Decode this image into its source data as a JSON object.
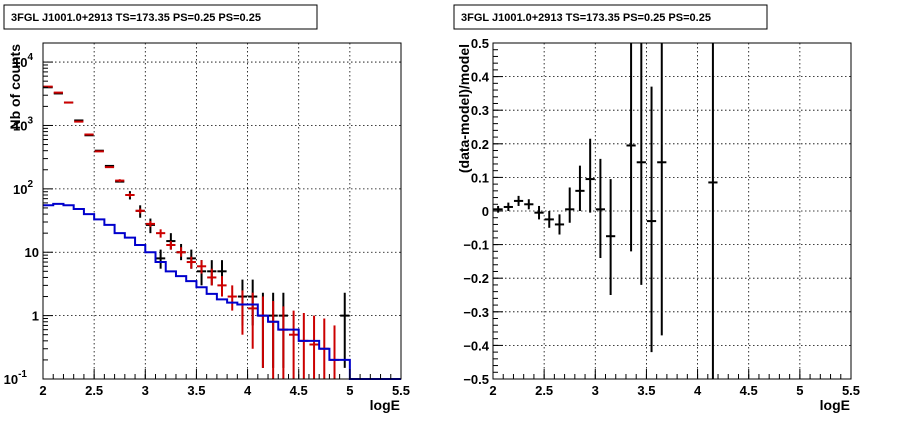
{
  "chart_data": [
    {
      "type": "line",
      "title": "3FGL J1001.0+2913 TS=173.35 PS=0.25 PS=0.25",
      "xlabel": "logE",
      "ylabel": "Nb of counts",
      "xlim": [
        2,
        5.5
      ],
      "ylim": [
        0.1,
        20000
      ],
      "yscale": "log",
      "grid": true,
      "x_ticks": [
        "2",
        "2.5",
        "3",
        "3.5",
        "4",
        "4.5",
        "5",
        "5.5"
      ],
      "y_ticks": [
        {
          "value": 0.1,
          "label": "10",
          "exp": "-1"
        },
        {
          "value": 1,
          "label": "1",
          "exp": ""
        },
        {
          "value": 10,
          "label": "10",
          "exp": ""
        },
        {
          "value": 100,
          "label": "10",
          "exp": "2"
        },
        {
          "value": 1000,
          "label": "10",
          "exp": "3"
        },
        {
          "value": 10000,
          "label": "10",
          "exp": "4"
        }
      ],
      "series": [
        {
          "kind": "points",
          "color": "#000000",
          "x": [
            2.05,
            2.15,
            2.25,
            2.35,
            2.45,
            2.55,
            2.65,
            2.75,
            2.85,
            2.95,
            3.05,
            3.15,
            3.25,
            3.35,
            3.45,
            3.55,
            3.65,
            3.75,
            3.85,
            3.95,
            4.05,
            4.15,
            4.25,
            4.35,
            4.45,
            4.55,
            4.65,
            4.75,
            4.85,
            4.95
          ],
          "y": [
            4000,
            3200,
            2300,
            1200,
            700,
            400,
            230,
            130,
            80,
            45,
            27,
            8,
            15,
            10,
            8,
            5,
            5,
            5,
            null,
            2,
            2,
            1,
            1,
            1,
            null,
            null,
            null,
            null,
            null,
            1
          ],
          "ylo": [
            4000,
            3200,
            2300,
            1200,
            700,
            400,
            230,
            130,
            68,
            35,
            20,
            5.5,
            11,
            7.5,
            5.5,
            3,
            3,
            3,
            null,
            0.7,
            0.7,
            0.15,
            0.15,
            0.15,
            null,
            null,
            null,
            null,
            null,
            0.15
          ],
          "yhi": [
            4000,
            3200,
            2300,
            1200,
            700,
            400,
            230,
            130,
            92,
            55,
            34,
            11,
            20,
            13.5,
            11,
            7.5,
            7.5,
            7.5,
            null,
            3.7,
            3.7,
            2.3,
            2.3,
            2.3,
            null,
            null,
            null,
            null,
            null,
            2.3
          ]
        },
        {
          "kind": "points",
          "color": "#cc0000",
          "x": [
            2.05,
            2.15,
            2.25,
            2.35,
            2.45,
            2.55,
            2.65,
            2.75,
            2.85,
            2.95,
            3.05,
            3.15,
            3.25,
            3.35,
            3.45,
            3.55,
            3.65,
            3.75,
            3.85,
            3.95,
            4.05,
            4.15,
            4.25,
            4.35,
            4.45,
            4.55,
            4.65,
            4.75,
            4.85
          ],
          "y": [
            4100,
            3300,
            2300,
            1150,
            720,
            390,
            220,
            135,
            80,
            45,
            28,
            20,
            13,
            10,
            7,
            6,
            4,
            3,
            2,
            1.5,
            1.3,
            1,
            0.8,
            0.6,
            0.5,
            0.4,
            0.35,
            0.3,
            0.2
          ],
          "ylo": [
            4100,
            3300,
            2300,
            1150,
            720,
            390,
            220,
            128,
            74,
            41,
            25,
            17,
            11,
            8.5,
            5.5,
            4.6,
            3,
            2,
            1.2,
            0.5,
            0.3,
            0.15,
            0.1,
            0.1,
            0.1,
            0.1,
            0.1,
            0.1,
            0.1
          ],
          "yhi": [
            4100,
            3300,
            2300,
            1150,
            720,
            390,
            220,
            142,
            86,
            49,
            31,
            23,
            15,
            12,
            8.5,
            7.5,
            5.5,
            4.2,
            3,
            2.5,
            2.3,
            2,
            1.7,
            1.4,
            1.2,
            1.1,
            1,
            0.9,
            0.7
          ]
        },
        {
          "kind": "step",
          "color": "#0000cc",
          "x": [
            2.0,
            2.1,
            2.2,
            2.3,
            2.4,
            2.5,
            2.6,
            2.7,
            2.8,
            2.9,
            3.0,
            3.1,
            3.2,
            3.3,
            3.4,
            3.5,
            3.6,
            3.7,
            3.8,
            3.9,
            4.0,
            4.1,
            4.2,
            4.3,
            4.4,
            4.5,
            4.6,
            4.7,
            4.8,
            4.9,
            5.0,
            5.1,
            5.2,
            5.3,
            5.4
          ],
          "y": [
            55,
            58,
            55,
            48,
            40,
            33,
            27,
            20,
            17,
            13,
            10,
            7,
            5,
            4.2,
            3.5,
            2.8,
            2.2,
            1.8,
            1.6,
            1.5,
            1.5,
            1,
            0.8,
            0.6,
            0.6,
            0.4,
            0.4,
            0.3,
            0.2,
            0.2,
            0.1,
            0.1,
            0.1,
            0.1,
            0.1
          ]
        }
      ]
    },
    {
      "type": "scatter",
      "title": "3FGL J1001.0+2913 TS=173.35 PS=0.25 PS=0.25",
      "xlabel": "logE",
      "ylabel": "(data-model)/model",
      "xlim": [
        2,
        5.5
      ],
      "ylim": [
        -0.5,
        0.5
      ],
      "yscale": "linear",
      "grid": true,
      "x_ticks": [
        "2",
        "2.5",
        "3",
        "3.5",
        "4",
        "4.5",
        "5",
        "5.5"
      ],
      "y_ticks": [
        "−0.5",
        "−0.4",
        "−0.3",
        "−0.2",
        "−0.1",
        "0",
        "0.1",
        "0.2",
        "0.3",
        "0.4",
        "0.5"
      ],
      "series": [
        {
          "kind": "points",
          "color": "#000000",
          "x": [
            2.05,
            2.15,
            2.25,
            2.35,
            2.45,
            2.55,
            2.65,
            2.75,
            2.85,
            2.95,
            3.05,
            3.15,
            3.35,
            3.45,
            3.55,
            3.65,
            4.15
          ],
          "y": [
            0.005,
            0.012,
            0.03,
            0.02,
            -0.005,
            -0.025,
            -0.04,
            0.005,
            0.06,
            0.095,
            0.005,
            -0.075,
            0.195,
            0.145,
            -0.03,
            0.145,
            0.085
          ],
          "ylo": [
            -0.005,
            0.0,
            0.015,
            0.005,
            -0.025,
            -0.05,
            -0.07,
            -0.035,
            0.0,
            -0.005,
            -0.14,
            -0.25,
            -0.12,
            -0.22,
            -0.42,
            -0.37,
            -0.5
          ],
          "yhi": [
            0.015,
            0.025,
            0.045,
            0.035,
            0.015,
            0.0,
            -0.01,
            0.07,
            0.135,
            0.215,
            0.155,
            0.095,
            0.5,
            0.5,
            0.37,
            0.5,
            0.5
          ]
        }
      ]
    }
  ]
}
